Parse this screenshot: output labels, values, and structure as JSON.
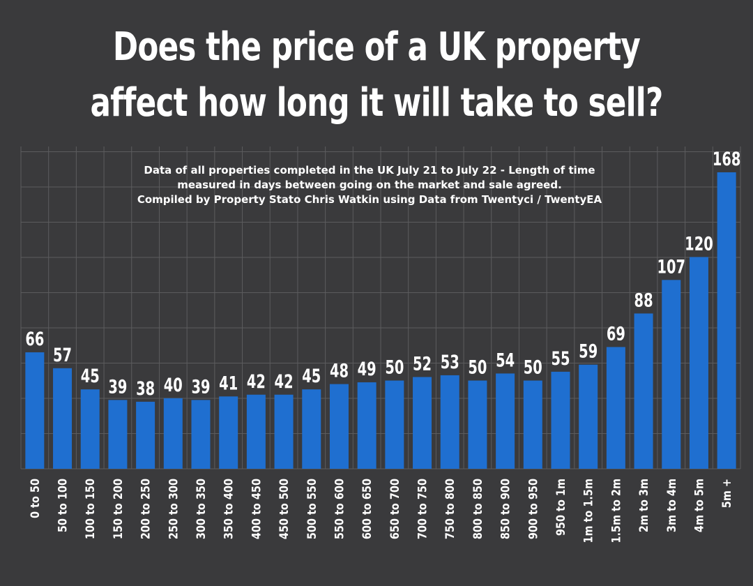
{
  "title_line1": "Does the price of a UK property",
  "title_line2": "affect how long it will take to sell?",
  "subtitle_line1": "Data of all properties completed in the UK  July 21 to July 22 - Length of time",
  "subtitle_line2": "measured in days between going on the market and sale agreed.",
  "subtitle_line3": "Compiled by Property Stato Chris Watkin using Data from Twentyci / TwentyEA",
  "colors": {
    "background": "#3a3a3c",
    "bar": "#1f6fd0",
    "grid": "#5c5c5e",
    "text": "#ffffff"
  },
  "chart_data": {
    "type": "bar",
    "categories": [
      "0 to 50",
      "50 to 100",
      "100 to 150",
      "150 to 200",
      "200 to 250",
      "250 to 300",
      "300 to 350",
      "350 to 400",
      "400 to 450",
      "450 to 500",
      "500 to 550",
      "550 to 600",
      "600 to 650",
      "650 to 700",
      "700 to 750",
      "750 to 800",
      "800 to 850",
      "850 to 900",
      "900 to 950",
      "950 to 1m",
      "1m to 1.5m",
      "1.5m to 2m",
      "2m to 3m",
      "3m to 4m",
      "4m to 5m",
      "5m +"
    ],
    "values": [
      66,
      57,
      45,
      39,
      38,
      40,
      39,
      41,
      42,
      42,
      45,
      48,
      49,
      50,
      52,
      53,
      50,
      54,
      50,
      55,
      59,
      69,
      88,
      107,
      120,
      168
    ],
    "ylim": [
      0,
      168
    ],
    "grid": true,
    "data_labels": true
  }
}
